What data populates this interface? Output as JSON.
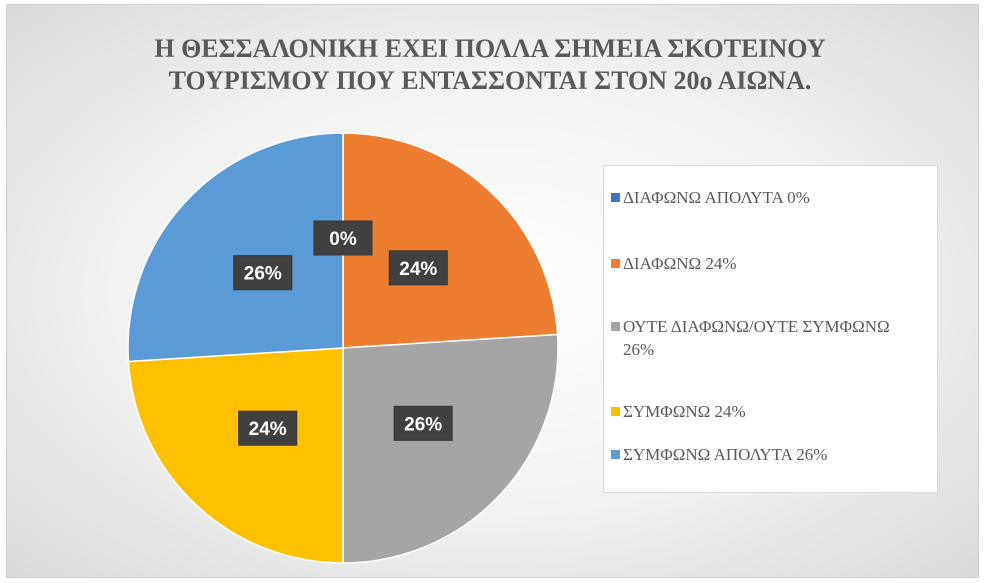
{
  "chart_data": {
    "type": "pie",
    "title": "Η ΘΕΣΣΑΛΟΝΙΚΗ ΕΧΕΙ ΠΟΛΛΑ ΣΗΜΕΙΑ ΣΚΟΤΕΙΝΟΥ ΤΟΥΡΙΣΜΟΥ ΠΟΥ ΕΝΤΑΣΣΟΝΤΑΙ ΣΤΟΝ 20ο ΑΙΩΝΑ.",
    "categories": [
      "ΔΙΑΦΩΝΩ ΑΠΟΛΥΤΑ 0%",
      "ΔΙΑΦΩΝΩ 24%",
      "ΟΥΤΕ ΔΙΑΦΩΝΩ/ΟΥΤΕ ΣΥΜΦΩΝΩ 26%",
      "ΣΥΜΦΩΝΩ 24%",
      "ΣΥΜΦΩΝΩ ΑΠΟΛΥΤΑ 26%"
    ],
    "values": [
      0,
      24,
      26,
      24,
      26
    ],
    "value_labels": [
      "0%",
      "24%",
      "26%",
      "24%",
      "26%"
    ],
    "colors": [
      "#4472c4",
      "#ed7d31",
      "#a5a5a5",
      "#ffc000",
      "#5b9bd5"
    ],
    "legend": "right"
  }
}
